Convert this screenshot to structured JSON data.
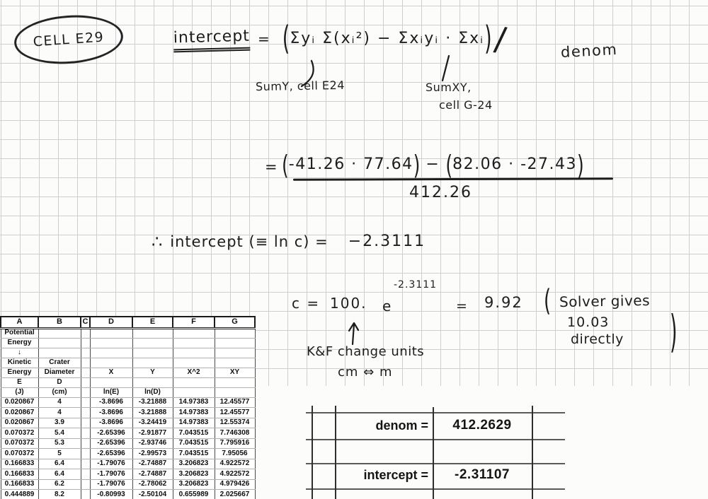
{
  "handwriting": {
    "badge": "CELL E29",
    "formula": {
      "lhs": "intercept",
      "eq": "=",
      "open": "(",
      "body": "Σyᵢ Σ(xᵢ²) − Σxᵢyᵢ · Σxᵢ",
      "close": ")",
      "slash": "/",
      "denom_word": "denom"
    },
    "callouts": {
      "sumy": "SumY, cell E24",
      "sumxy_line1": "SumXY,",
      "sumxy_line2": "cell G-24"
    },
    "calc": {
      "eq": "=",
      "open1": "(",
      "group1": "-41.26 · 77.64",
      "close1": ")",
      "minus": "−",
      "open2": "(",
      "group2": "82.06 · -27.43",
      "close2": ")",
      "denominator": "412.26"
    },
    "conclusion": {
      "therefore": "∴",
      "text": "intercept (≡ ln c) =",
      "value": "−2.3111"
    },
    "c_calc": {
      "lhs": "c =",
      "coeff": "100.",
      "base": "e",
      "exponent": "-2.3111",
      "eq": "=",
      "result": "9.92"
    },
    "solver_note": {
      "open": "(",
      "line1": "Solver gives",
      "line2": "10.03",
      "line3": "directly",
      "close": ")"
    },
    "units_note": {
      "line1": "K&F change units",
      "line2": "cm ⇔ m"
    }
  },
  "spreadsheet": {
    "column_letters": [
      "A",
      "B",
      "C",
      "D",
      "E",
      "F",
      "G"
    ],
    "header_rows": [
      [
        "Potential",
        "",
        "",
        "",
        "",
        "",
        ""
      ],
      [
        "Energy",
        "",
        "",
        "",
        "",
        "",
        ""
      ],
      [
        "↓",
        "",
        "",
        "",
        "",
        "",
        ""
      ],
      [
        "Kinetic",
        "Crater",
        "",
        "",
        "",
        "",
        ""
      ],
      [
        "Energy",
        "Diameter",
        "",
        "X",
        "Y",
        "X^2",
        "XY"
      ],
      [
        "E",
        "D",
        "",
        "",
        "",
        "",
        ""
      ],
      [
        "(J)",
        "(cm)",
        "",
        "ln(E)",
        "ln(D)",
        "",
        ""
      ]
    ],
    "data_rows": [
      [
        "0.020867",
        "4",
        "",
        "-3.8696",
        "-3.21888",
        "14.97383",
        "12.45577"
      ],
      [
        "0.020867",
        "4",
        "",
        "-3.8696",
        "-3.21888",
        "14.97383",
        "12.45577"
      ],
      [
        "0.020867",
        "3.9",
        "",
        "-3.8696",
        "-3.24419",
        "14.97383",
        "12.55374"
      ],
      [
        "0.070372",
        "5.4",
        "",
        "-2.65396",
        "-2.91877",
        "7.043515",
        "7.746308"
      ],
      [
        "0.070372",
        "5.3",
        "",
        "-2.65396",
        "-2.93746",
        "7.043515",
        "7.795916"
      ],
      [
        "0.070372",
        "5",
        "",
        "-2.65396",
        "-2.99573",
        "7.043515",
        "7.95056"
      ],
      [
        "0.166833",
        "6.4",
        "",
        "-1.79076",
        "-2.74887",
        "3.206823",
        "4.922572"
      ],
      [
        "0.166833",
        "6.4",
        "",
        "-1.79076",
        "-2.74887",
        "3.206823",
        "4.922572"
      ],
      [
        "0.166833",
        "6.2",
        "",
        "-1.79076",
        "-2.78062",
        "3.206823",
        "4.979426"
      ],
      [
        "0.444889",
        "8.2",
        "",
        "-0.80993",
        "-2.50104",
        "0.655989",
        "2.025667"
      ]
    ]
  },
  "results_panel": {
    "rows": [
      {
        "label": "denom =",
        "value": "412.2629"
      },
      {
        "label": "intercept =",
        "value": "-2.31107"
      }
    ]
  },
  "colors": {
    "ink": "#1d1d1d",
    "grid_line": "#ccd0d3",
    "paper": "#fcfcfb"
  }
}
